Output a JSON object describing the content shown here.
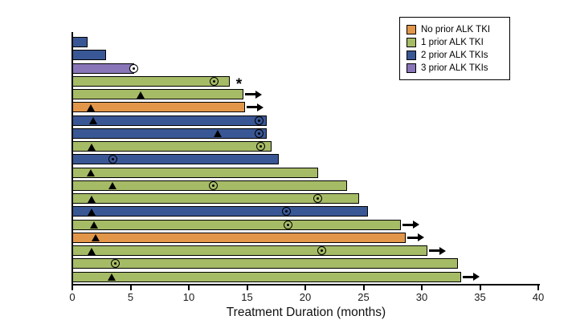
{
  "chart_data": {
    "type": "bar",
    "orientation": "horizontal",
    "title": "",
    "xlabel": "Treatment Duration (months)",
    "ylabel": "",
    "xlim": [
      0,
      40
    ],
    "xticks": [
      0,
      5,
      10,
      15,
      20,
      25,
      30,
      35,
      40
    ],
    "grid": false,
    "legend_position": "top-right",
    "legend": [
      {
        "key": "no_prior",
        "label": "No prior ALK TKI",
        "color": "#E2964A"
      },
      {
        "key": "one_prior",
        "label": "1 prior ALK TKI",
        "color": "#A6BB66"
      },
      {
        "key": "two_prior",
        "label": "2 prior ALK TKIs",
        "color": "#3A5795"
      },
      {
        "key": "three_prior",
        "label": "3 prior ALK TKIs",
        "color": "#8976B8"
      }
    ],
    "marker_glyphs": {
      "triangle": "black filled triangle on bar",
      "circled_dot": "open circle with center dot on bar",
      "end_circle": "open circle with dot at bar end",
      "arrow": "black right arrow after bar (treatment ongoing)",
      "asterisk": "* after bar"
    },
    "patients": [
      {
        "group": "two_prior",
        "duration": 1.3
      },
      {
        "group": "two_prior",
        "duration": 2.9
      },
      {
        "group": "three_prior",
        "duration": 5.3,
        "end_circle": true
      },
      {
        "group": "one_prior",
        "duration": 13.5,
        "circled_dot": 12.2,
        "asterisk": true
      },
      {
        "group": "one_prior",
        "duration": 14.7,
        "triangle": 5.9,
        "arrow": true
      },
      {
        "group": "no_prior",
        "duration": 14.8,
        "triangle": 1.6,
        "arrow": true
      },
      {
        "group": "two_prior",
        "duration": 16.7,
        "triangle": 1.8,
        "circled_dot": 16.0
      },
      {
        "group": "two_prior",
        "duration": 16.7,
        "triangle": 12.5,
        "circled_dot": 16.0
      },
      {
        "group": "one_prior",
        "duration": 17.1,
        "triangle": 1.7,
        "circled_dot": 16.2
      },
      {
        "group": "two_prior",
        "duration": 17.7,
        "circled_dot": 3.5
      },
      {
        "group": "one_prior",
        "duration": 21.1,
        "triangle": 1.6
      },
      {
        "group": "one_prior",
        "duration": 23.6,
        "triangle": 3.5,
        "circled_dot": 12.1
      },
      {
        "group": "one_prior",
        "duration": 24.6,
        "triangle": 1.7,
        "circled_dot": 21.1
      },
      {
        "group": "two_prior",
        "duration": 25.4,
        "triangle": 1.7,
        "circled_dot": 18.4
      },
      {
        "group": "one_prior",
        "duration": 28.2,
        "triangle": 1.9,
        "circled_dot": 18.5,
        "arrow": true
      },
      {
        "group": "no_prior",
        "duration": 28.6,
        "triangle": 2.0,
        "arrow": true
      },
      {
        "group": "one_prior",
        "duration": 30.5,
        "triangle": 1.7,
        "circled_dot": 21.4,
        "arrow": true
      },
      {
        "group": "one_prior",
        "duration": 33.1,
        "circled_dot": 3.7
      },
      {
        "group": "one_prior",
        "duration": 33.4,
        "triangle": 3.4,
        "arrow": true
      }
    ]
  }
}
